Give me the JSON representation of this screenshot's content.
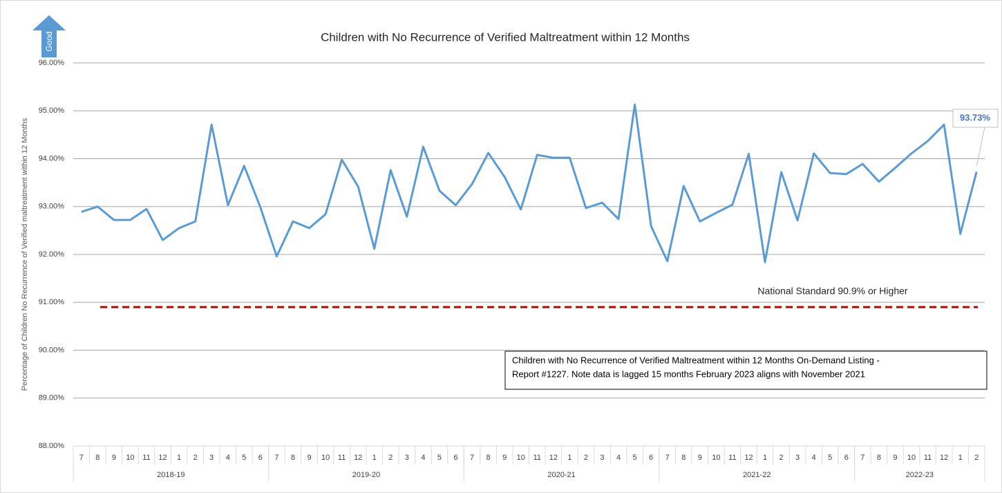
{
  "chart_data": {
    "type": "line",
    "title": "Children with No Recurrence of Verified Maltreatment within 12 Months",
    "y_label": "Percentage of Children No Recurrence of Verified maltreatment within 12 Months",
    "badge": "Good",
    "categories": [
      "7",
      "8",
      "9",
      "10",
      "11",
      "12",
      "1",
      "2",
      "3",
      "4",
      "5",
      "6",
      "7",
      "8",
      "9",
      "10",
      "11",
      "12",
      "1",
      "2",
      "3",
      "4",
      "5",
      "6",
      "7",
      "8",
      "9",
      "10",
      "11",
      "12",
      "1",
      "2",
      "3",
      "4",
      "5",
      "6",
      "7",
      "8",
      "9",
      "10",
      "11",
      "12",
      "1",
      "2",
      "3",
      "4",
      "5",
      "6",
      "7",
      "8",
      "9",
      "10",
      "11",
      "12",
      "1",
      "2"
    ],
    "groups": [
      "2018-19",
      "2019-20",
      "2020-21",
      "2021-22",
      "2022-23"
    ],
    "series": [
      {
        "name": "No Recurrence",
        "color": "#5b9bd5",
        "values": [
          92.89,
          93.0,
          92.72,
          92.72,
          92.95,
          92.3,
          92.55,
          92.69,
          94.71,
          93.03,
          93.85,
          92.98,
          91.96,
          92.69,
          92.55,
          92.84,
          93.98,
          93.42,
          92.12,
          93.76,
          92.79,
          94.25,
          93.33,
          93.03,
          93.47,
          94.12,
          93.62,
          92.94,
          94.08,
          94.02,
          94.02,
          92.97,
          93.08,
          92.74,
          95.13,
          92.59,
          91.86,
          93.43,
          92.69,
          92.87,
          93.04,
          94.1,
          91.84,
          93.72,
          92.71,
          94.11,
          93.7,
          93.68,
          93.89,
          93.52,
          93.81,
          94.11,
          94.37,
          94.71,
          92.43,
          93.73
        ],
        "value_labels": {
          "55": "93.73%"
        }
      }
    ],
    "reference_line": {
      "value": 90.9,
      "label": "National Standard 90.9% or Higher",
      "color": "#c00000"
    },
    "note": [
      "Children with No Recurrence of Verified Maltreatment within 12 Months On-Demand Listing -",
      "Report #1227.   Note data is lagged 15 months February 2023  aligns with November 2021"
    ],
    "ylim": [
      88,
      96
    ],
    "yticks": [
      {
        "value": 88,
        "label": "88.00%"
      },
      {
        "value": 89,
        "label": "89.00%"
      },
      {
        "value": 90,
        "label": "90.00%"
      },
      {
        "value": 91,
        "label": "91.00%"
      },
      {
        "value": 92,
        "label": "92.00%"
      },
      {
        "value": 93,
        "label": "93.00%"
      },
      {
        "value": 94,
        "label": "94.00%"
      },
      {
        "value": 95,
        "label": "95.00%"
      },
      {
        "value": 96,
        "label": "96.00%"
      }
    ],
    "grid": true
  }
}
